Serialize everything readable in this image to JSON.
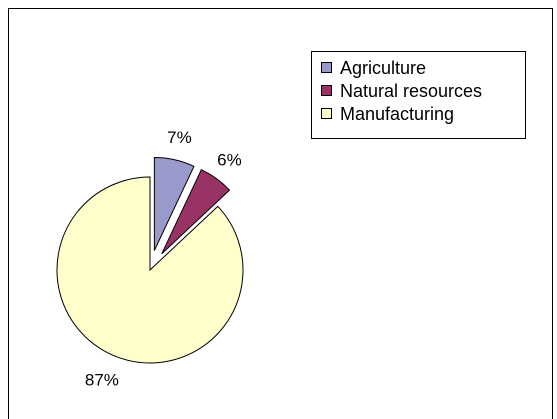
{
  "chart_data": {
    "type": "pie",
    "title": "",
    "categories": [
      "Agriculture",
      "Natural resources",
      "Manufacturing"
    ],
    "values": [
      7,
      6,
      87
    ],
    "data_labels": [
      "7%",
      "6%",
      "87%"
    ],
    "colors": [
      "#9999cc",
      "#993366",
      "#ffffcc"
    ],
    "exploded": [
      true,
      true,
      false
    ],
    "legend_position": "top-right",
    "legend": {
      "entries": [
        {
          "label": "Agriculture",
          "color": "#9999cc"
        },
        {
          "label": "Natural resources",
          "color": "#993366"
        },
        {
          "label": "Manufacturing",
          "color": "#ffffcc"
        }
      ]
    }
  }
}
